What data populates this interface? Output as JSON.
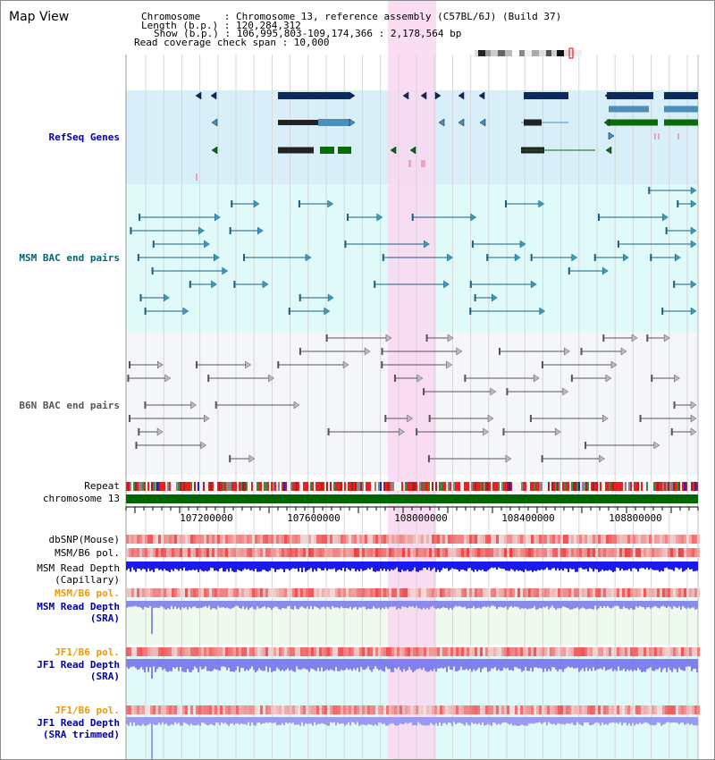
{
  "title": "Map View",
  "info": {
    "chromosome_label": "Chromosome    : Chromosome 13, reference assembly (C57BL/6J) (Build 37)",
    "length_label": "Length (b.p.) : 120,284,312",
    "show_label": "Show (b.p.) : 106,995,803-109,174,366 : 2,178,564 bp",
    "coverage_label": "Read coverage check span : 10,000"
  },
  "tracks": {
    "refseq": "RefSeq Genes",
    "msm_bac": "MSM BAC end pairs",
    "b6n_bac": "B6N BAC end pairs",
    "repeat": "Repeat",
    "chromosome": "chromosome 13",
    "dbsnp": "dbSNP(Mouse)",
    "msm_b6_pol_1": "MSM/B6 pol.",
    "msm_depth_cap_1": "MSM Read Depth",
    "msm_depth_cap_2": "(Capillary)",
    "msm_b6_pol_2": "MSM/B6 pol.",
    "msm_depth_sra_1": "MSM Read Depth",
    "msm_depth_sra_2": "(SRA)",
    "jf1_b6_pol_1": "JF1/B6 pol.",
    "jf1_depth_sra_1": "JF1 Read Depth",
    "jf1_depth_sra_2": "(SRA)",
    "jf1_b6_pol_2": "JF1/B6 pol.",
    "jf1_depth_trim_1": "JF1 Read Depth",
    "jf1_depth_trim_2": "(SRA trimmed)"
  },
  "axis": {
    "ticks": [
      "107200000",
      "107600000",
      "108000000",
      "108400000",
      "108800000"
    ]
  },
  "colors": {
    "refseq_label": "#0000aa",
    "msm_label": "#006677",
    "b6n_label": "#555555",
    "orange_label": "#ee9900",
    "blue_label": "#0000aa",
    "highlight": "#f9d7f0",
    "refseq_bg": "#d8eef8",
    "msm_bg": "#e0fafa",
    "b6n_bg": "#f4f6fa",
    "chromosome_bar": "#006600"
  }
}
